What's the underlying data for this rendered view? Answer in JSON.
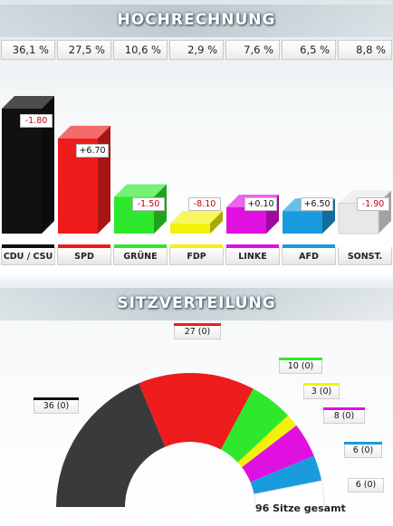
{
  "hochrechnung": {
    "title": "HOCHRECHNUNG",
    "parties": [
      {
        "name": "CDU / CSU",
        "percent_label": "36,1 %",
        "change_label": "-1.80",
        "color": "#111111"
      },
      {
        "name": "SPD",
        "percent_label": "27,5 %",
        "change_label": "+6.70",
        "color": "#ee1c1c"
      },
      {
        "name": "GRÜNE",
        "percent_label": "10,6 %",
        "change_label": "-1.50",
        "color": "#2ee82e"
      },
      {
        "name": "FDP",
        "percent_label": "2,9 %",
        "change_label": "-8.10",
        "color": "#f2f20a"
      },
      {
        "name": "LINKE",
        "percent_label": "7,6 %",
        "change_label": "+0.10",
        "color": "#e010e0"
      },
      {
        "name": "AFD",
        "percent_label": "6,5 %",
        "change_label": "+6.50",
        "color": "#1a9bde"
      },
      {
        "name": "SONST.",
        "percent_label": "8,8 %",
        "change_label": "-1.90",
        "color": "#e8e8e8"
      }
    ]
  },
  "sitzverteilung": {
    "title": "SITZVERTEILUNG",
    "total_label": "96 Sitze gesamt"
  },
  "chart_data": [
    {
      "type": "bar",
      "title": "HOCHRECHNUNG",
      "categories": [
        "CDU / CSU",
        "SPD",
        "GRÜNE",
        "FDP",
        "LINKE",
        "AFD",
        "SONST."
      ],
      "values": [
        36.1,
        27.5,
        10.6,
        2.9,
        7.6,
        6.5,
        8.8
      ],
      "changes": [
        -1.8,
        6.7,
        -1.5,
        -8.1,
        0.1,
        6.5,
        -1.9
      ],
      "colors": [
        "#111111",
        "#ee1c1c",
        "#2ee82e",
        "#f2f20a",
        "#e010e0",
        "#1a9bde",
        "#e8e8e8"
      ],
      "ylim": [
        0,
        40
      ]
    },
    {
      "type": "pie",
      "title": "SITZVERTEILUNG",
      "labels": [
        "CDU / CSU",
        "SPD",
        "GRÜNE",
        "FDP",
        "LINKE",
        "AFD",
        "SONST."
      ],
      "values": [
        36,
        27,
        10,
        3,
        8,
        6,
        6
      ],
      "changes": [
        0,
        0,
        0,
        0,
        0,
        0,
        0
      ],
      "value_labels": [
        "36 (0)",
        "27 (0)",
        "10 (0)",
        "3 (0)",
        "8 (0)",
        "6 (0)",
        "6 (0)"
      ],
      "colors": [
        "#3a3a3a",
        "#ee1c1c",
        "#2ee82e",
        "#f2f20a",
        "#e010e0",
        "#1a9bde",
        "#ffffff"
      ],
      "total": 96
    }
  ]
}
